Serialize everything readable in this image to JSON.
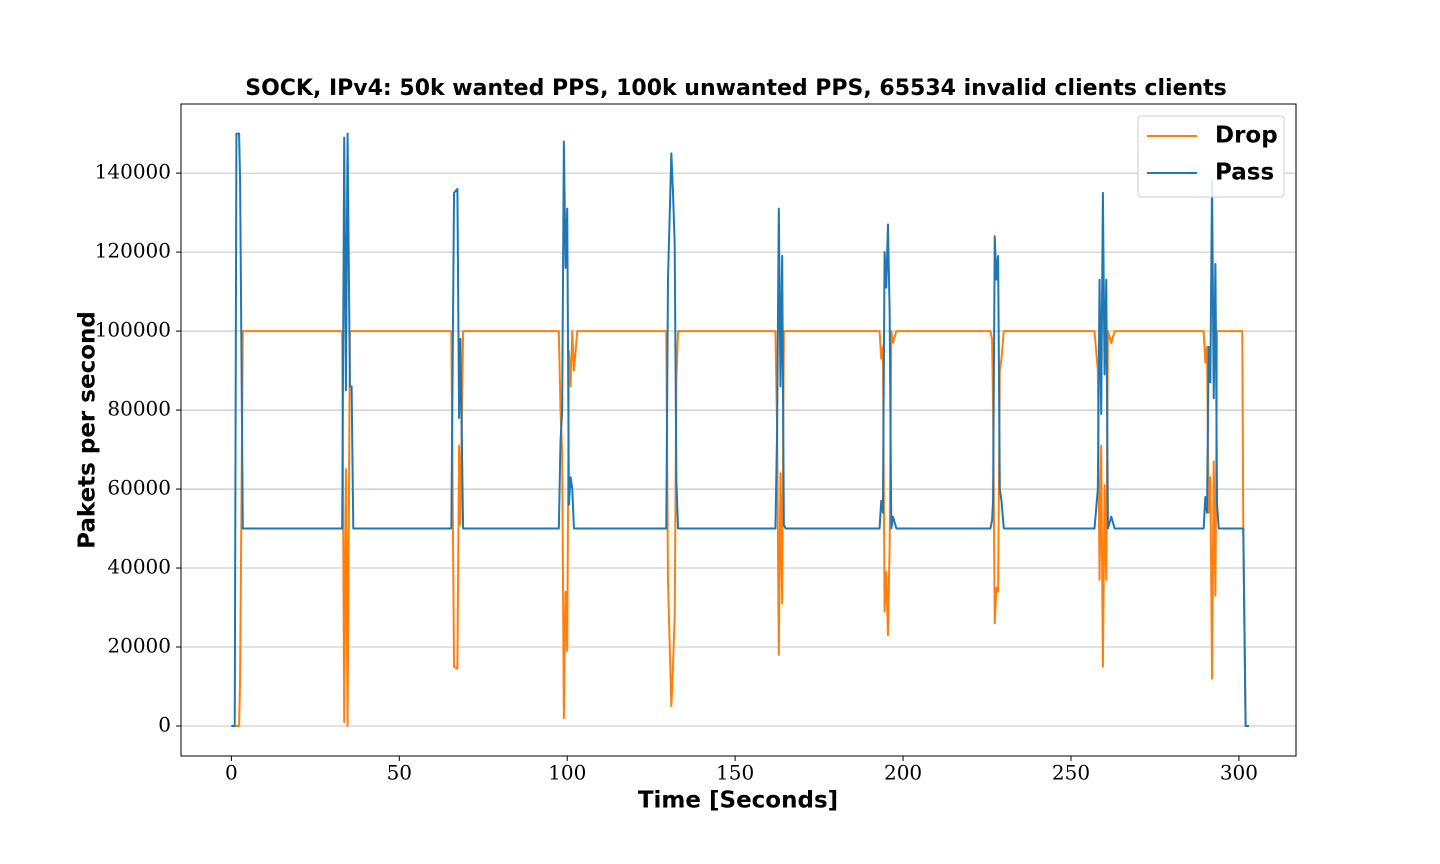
{
  "chart_data": {
    "type": "line",
    "title": "SOCK, IPv4: 50k wanted PPS, 100k unwanted PPS, 65534 invalid clients clients",
    "x_label": "Time [Seconds]",
    "y_label": "Pakets per second",
    "xlim": [
      -15,
      317
    ],
    "ylim": [
      -7600,
      157500
    ],
    "xticks": [
      0,
      50,
      100,
      150,
      200,
      250,
      300
    ],
    "yticks": [
      0,
      20000,
      40000,
      60000,
      80000,
      100000,
      120000,
      140000
    ],
    "grid": "y",
    "legend": "upper right",
    "x": [
      0,
      1,
      1.5,
      2.3,
      2.6,
      3.4,
      33,
      33.6,
      34.1,
      34.6,
      35.3,
      35.8,
      36.3,
      65.5,
      66.3,
      67.3,
      67.8,
      68.2,
      69,
      97.5,
      98,
      98.5,
      99,
      99.5,
      100,
      100.5,
      101,
      101.5,
      102,
      103,
      129.5,
      130,
      131,
      131.5,
      132,
      132.5,
      133,
      162,
      162.5,
      163,
      163.5,
      164,
      164.5,
      165,
      193,
      193.5,
      194,
      194.5,
      195,
      195.5,
      196,
      196.5,
      197,
      198,
      226,
      226.5,
      226.8,
      227.3,
      227.8,
      228.3,
      228.8,
      229.3,
      230,
      257,
      258,
      258.5,
      259,
      259.5,
      260,
      260.5,
      261,
      262,
      263,
      289.5,
      290,
      290.5,
      291,
      291.5,
      292,
      292.5,
      293,
      293.5,
      294,
      301,
      301.3,
      302,
      303
    ],
    "series": [
      {
        "name": "Drop",
        "color": "#ff7f0e",
        "values": [
          0,
          0,
          0,
          0,
          12000,
          100000,
          100000,
          1000,
          65000,
          0,
          100000,
          100000,
          100000,
          100000,
          15000,
          14500,
          71000,
          51000,
          100000,
          100000,
          80000,
          69000,
          2000,
          34000,
          19000,
          95000,
          86000,
          100000,
          90000,
          100000,
          100000,
          37000,
          5000,
          15000,
          28000,
          88000,
          100000,
          100000,
          75000,
          18000,
          64000,
          31000,
          100000,
          100000,
          100000,
          93000,
          96000,
          29000,
          39000,
          23000,
          45000,
          100000,
          97000,
          100000,
          100000,
          98000,
          81000,
          26000,
          35000,
          34000,
          90000,
          93000,
          100000,
          100000,
          90000,
          37000,
          71000,
          15000,
          61000,
          37000,
          100000,
          97000,
          100000,
          100000,
          92000,
          96000,
          54000,
          63000,
          12000,
          67000,
          33000,
          100000,
          100000,
          100000,
          50000,
          0,
          0
        ]
      },
      {
        "name": "Pass",
        "color": "#1f77b4",
        "values": [
          0,
          0,
          150000,
          150000,
          138000,
          50000,
          50000,
          149000,
          85000,
          150000,
          86000,
          86000,
          50000,
          50000,
          135000,
          136000,
          78000,
          98000,
          50000,
          50000,
          72000,
          80000,
          148000,
          116000,
          131000,
          56000,
          63000,
          60000,
          50000,
          50000,
          50000,
          113000,
          145000,
          135000,
          122000,
          62000,
          50000,
          50000,
          75000,
          131000,
          86000,
          119000,
          51000,
          50000,
          50000,
          57000,
          54000,
          120000,
          111000,
          127000,
          105000,
          50000,
          53000,
          50000,
          50000,
          52000,
          57000,
          124000,
          113000,
          119000,
          60000,
          57000,
          50000,
          50000,
          60000,
          113000,
          79000,
          135000,
          89000,
          113000,
          50000,
          53000,
          50000,
          50000,
          58000,
          54000,
          96000,
          87000,
          138000,
          83000,
          117000,
          56000,
          50000,
          50000,
          50000,
          0,
          0
        ]
      }
    ]
  }
}
